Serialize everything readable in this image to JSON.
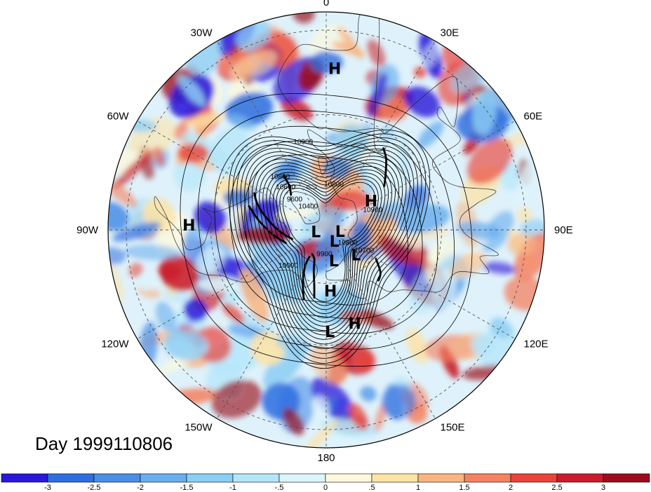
{
  "title": "Day 1999110806",
  "longitude_labels": [
    "90E",
    "60E",
    "30E",
    "0",
    "30W",
    "60W",
    "90W",
    "120W",
    "150W",
    "180",
    "150E",
    "120E"
  ],
  "pressure_centers": [
    {
      "type": "L",
      "lon": 130,
      "lat": 68
    },
    {
      "type": "H",
      "lon": 57,
      "lat": 60
    },
    {
      "type": "L",
      "lon": 178,
      "lat": 36
    },
    {
      "type": "H",
      "lon": 176,
      "lat": 56
    },
    {
      "type": "H",
      "lon": 163,
      "lat": 38
    },
    {
      "type": "L",
      "lon": 96,
      "lat": 82
    },
    {
      "type": "L",
      "lon": 144,
      "lat": 82
    },
    {
      "type": "L",
      "lon": 166,
      "lat": 72
    },
    {
      "type": "L",
      "lon": -100,
      "lat": 84
    },
    {
      "type": "H",
      "lon": -88,
      "lat": 21
    },
    {
      "type": "H",
      "lon": 3,
      "lat": 12
    }
  ],
  "contour_labels": [
    {
      "text": "10900",
      "lon": 69,
      "lat": 62
    },
    {
      "text": "10800",
      "lon": 125,
      "lat": 75
    },
    {
      "text": "10700",
      "lon": 121,
      "lat": 65
    },
    {
      "text": "9900",
      "lon": -176,
      "lat": 75
    },
    {
      "text": "10400",
      "lon": -40,
      "lat": 74
    },
    {
      "text": "9600",
      "lon": -48,
      "lat": 66
    },
    {
      "text": "10000",
      "lon": -135,
      "lat": 60
    },
    {
      "text": "10800",
      "lon": 10,
      "lat": 65
    },
    {
      "text": "10600",
      "lon": -45,
      "lat": 58
    },
    {
      "text": "10800",
      "lon": -42,
      "lat": 52
    },
    {
      "text": "10900",
      "lon": -15,
      "lat": 42
    }
  ],
  "colorbar": {
    "tick_labels": [
      "-3",
      "-2.5",
      "-2",
      "-1.5",
      "-1",
      "-.5",
      "0",
      ".5",
      "1",
      "1.5",
      "2",
      "2.5",
      "3"
    ],
    "colors": [
      "#2a18d9",
      "#2f6ee0",
      "#4a8fe6",
      "#69aeee",
      "#8ccdf3",
      "#b4e6fa",
      "#dcf4fc",
      "#fdf8dc",
      "#fde3a6",
      "#f8b583",
      "#f58262",
      "#e9443b",
      "#ca1c2a",
      "#9c0d1c"
    ]
  },
  "colors": {
    "frame": "#000000",
    "grid": "#555555",
    "contour": "#000000"
  }
}
